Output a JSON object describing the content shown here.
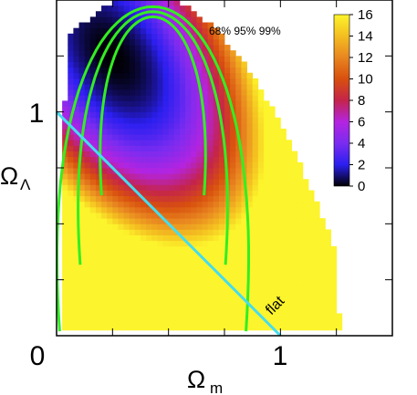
{
  "chart_data": {
    "type": "heatmap",
    "x_ticks": [
      "0",
      "1"
    ],
    "y_ticks": [
      "1"
    ],
    "xlabel_main": "Ω",
    "xlabel_sub": "m",
    "ylabel_main": "Ω",
    "ylabel_sub": "Λ",
    "xlim": [
      0,
      1.5
    ],
    "ylim": [
      0,
      1.5
    ],
    "confidence_label": "68% 95% 99%",
    "colorbar": {
      "ticks": [
        "0",
        "2",
        "4",
        "6",
        "8",
        "10",
        "12",
        "14",
        "16"
      ],
      "range": [
        0,
        16
      ],
      "stops": [
        "#000000",
        "#2b1ff0",
        "#7a2cf0",
        "#b424e0",
        "#c4244a",
        "#d8500e",
        "#e88620",
        "#f4be20",
        "#fcf42c"
      ]
    },
    "flat_line": {
      "label": "flat",
      "from": [
        0,
        1
      ],
      "to": [
        1,
        0
      ],
      "color": "#44ddee"
    },
    "contour_color": "#33ee22",
    "peak": [
      0.25,
      1.25
    ]
  }
}
